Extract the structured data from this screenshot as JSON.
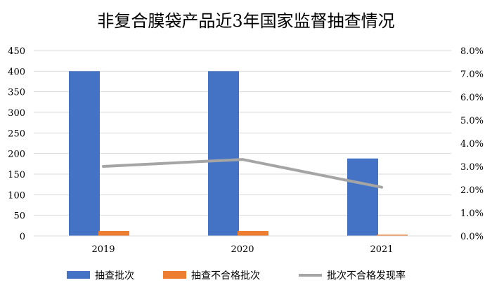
{
  "chart_data": {
    "type": "bar",
    "title": "非复合膜袋产品近3年国家监督抽查情况",
    "categories": [
      "2019",
      "2020",
      "2021"
    ],
    "series": [
      {
        "name": "抽查批次",
        "type": "bar",
        "axis": "left",
        "color": "#4472C4",
        "values": [
          400,
          400,
          188
        ]
      },
      {
        "name": "抽查不合格批次",
        "type": "bar",
        "axis": "left",
        "color": "#ED7D31",
        "values": [
          12,
          12,
          3
        ]
      },
      {
        "name": "批次不合格发现率",
        "type": "line",
        "axis": "right",
        "color": "#A5A5A5",
        "values": [
          3.0,
          3.3,
          2.1
        ]
      }
    ],
    "ylim_left": [
      0,
      450
    ],
    "ylim_right": [
      0,
      8
    ],
    "left_ticks": [
      "0",
      "50",
      "100",
      "150",
      "200",
      "250",
      "300",
      "350",
      "400",
      "450"
    ],
    "right_ticks": [
      "0.0%",
      "1.0%",
      "2.0%",
      "3.0%",
      "4.0%",
      "5.0%",
      "6.0%",
      "7.0%",
      "8.0%"
    ],
    "grid": true,
    "legend_position": "bottom"
  }
}
